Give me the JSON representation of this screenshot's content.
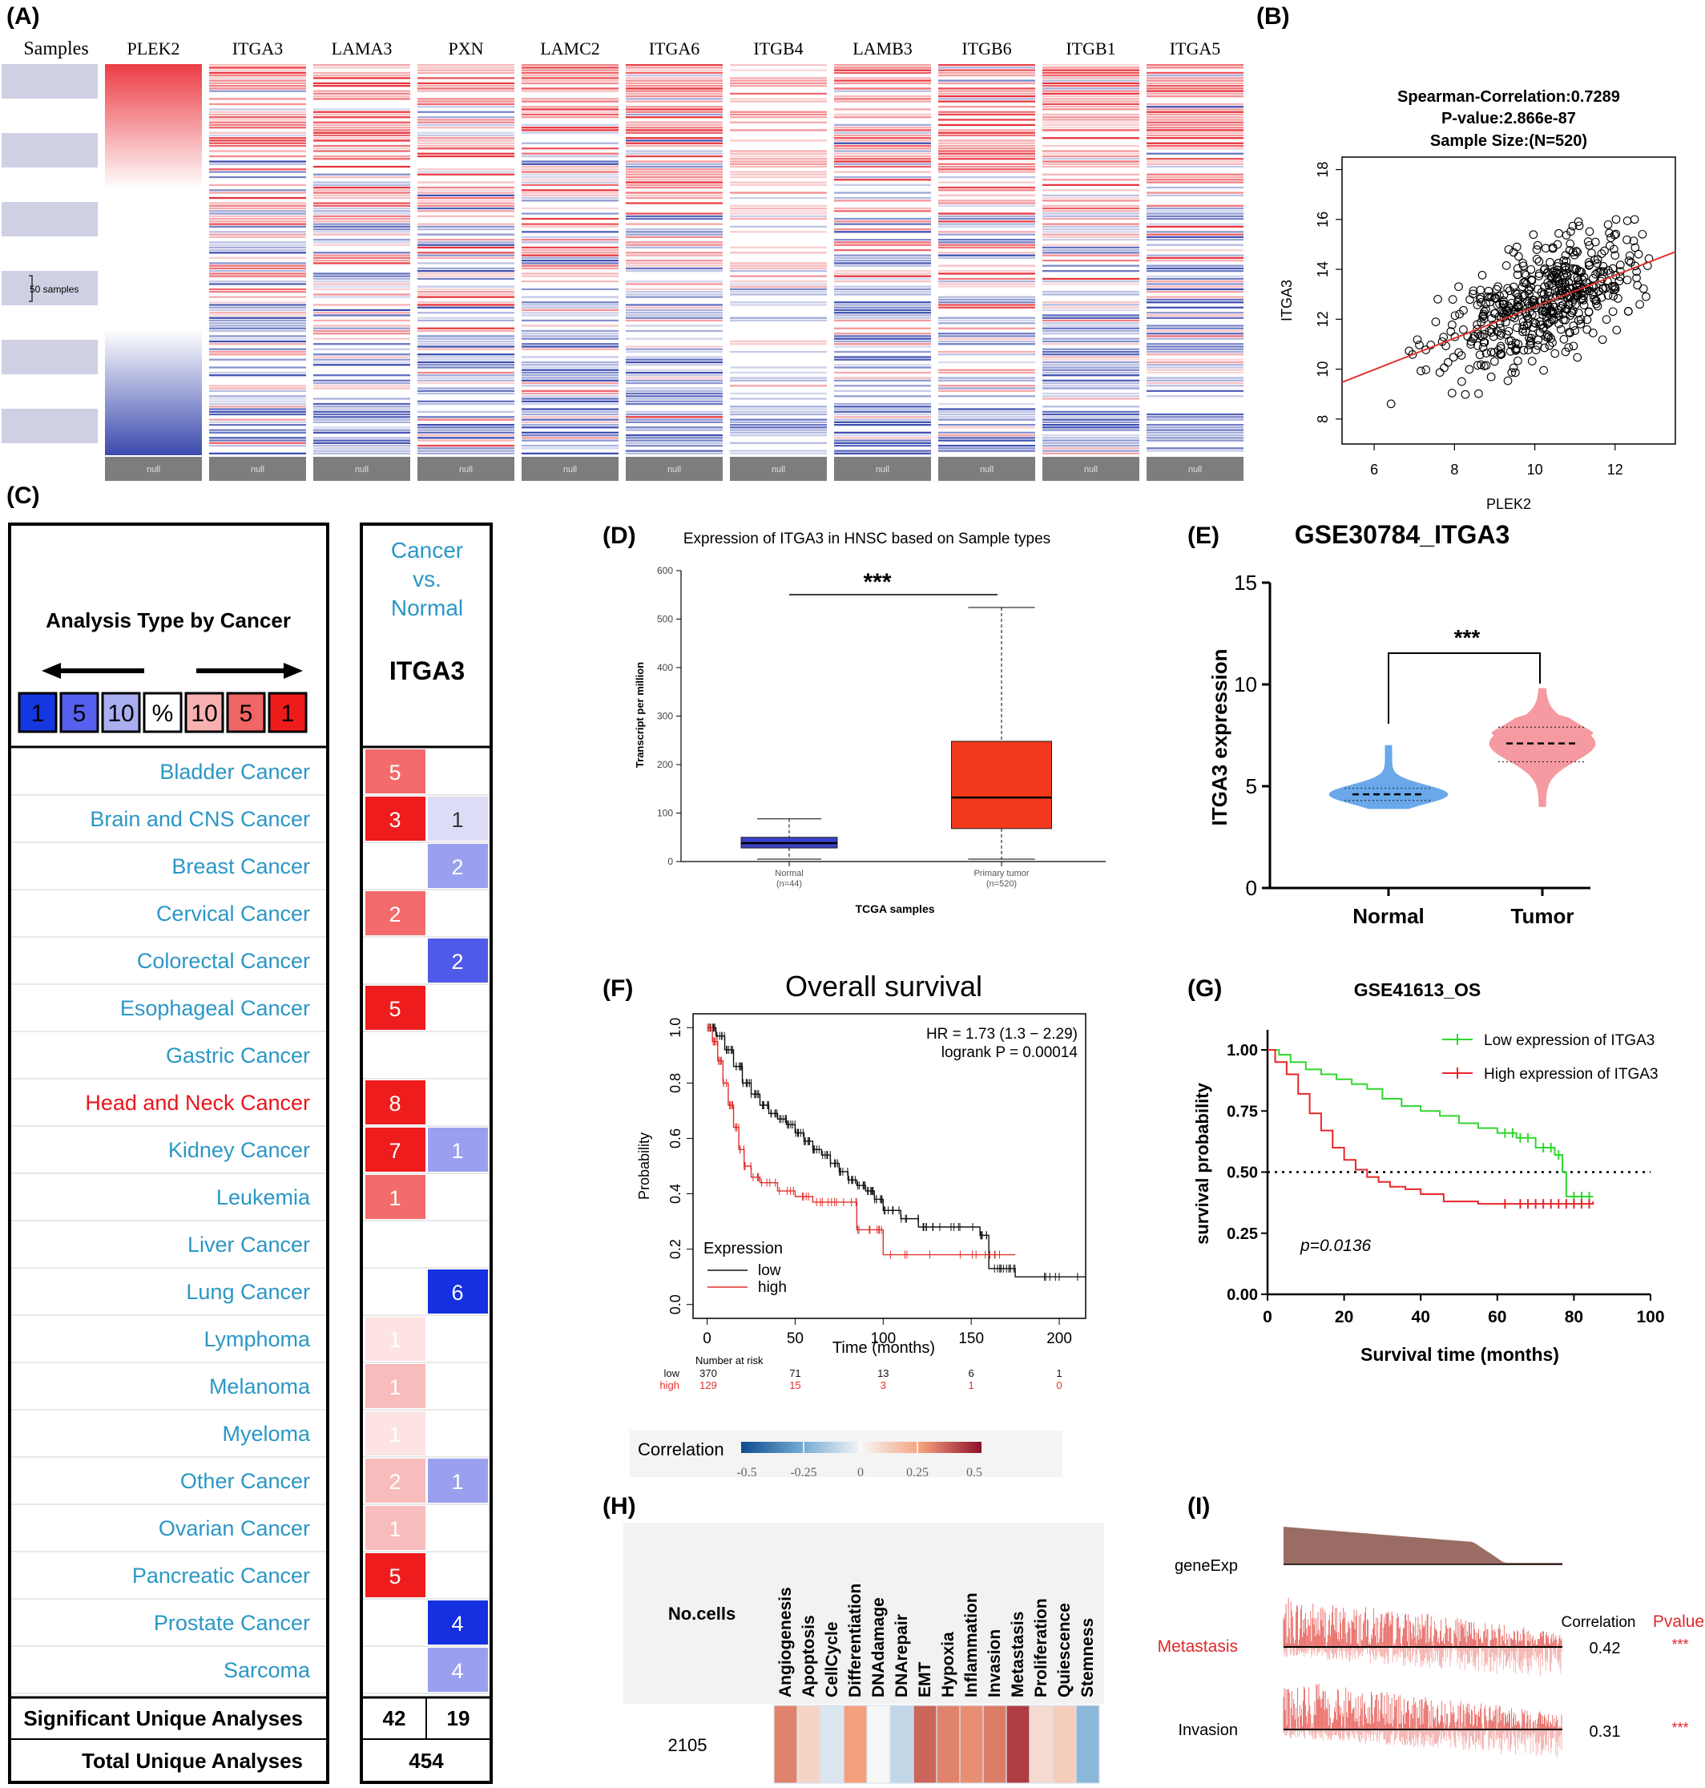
{
  "panels": {
    "A": {
      "label": "(A)"
    },
    "B": {
      "label": "(B)"
    },
    "C": {
      "label": "(C)"
    },
    "D": {
      "label": "(D)"
    },
    "E": {
      "label": "(E)"
    },
    "F": {
      "label": "(F)"
    },
    "G": {
      "label": "(G)"
    },
    "H": {
      "label": "(H)"
    },
    "I": {
      "label": "(I)"
    }
  },
  "chart_data": [
    {
      "panel": "A",
      "type": "heatmap",
      "sample_header": "Samples",
      "sample_scale_label": "50 samples",
      "columns": [
        "PLEK2",
        "ITGA3",
        "LAMA3",
        "PXN",
        "LAMC2",
        "ITGA6",
        "ITGB4",
        "LAMB3",
        "ITGB6",
        "ITGB1",
        "ITGA5"
      ],
      "footer_label": "null",
      "colors": {
        "high": "#e8343c",
        "low": "#3f4fb0",
        "mid": "#ffffff",
        "band": "#cfd0e4",
        "footer": "#7d7d7d"
      }
    },
    {
      "panel": "B",
      "type": "scatter",
      "title_lines": [
        "Spearman-Correlation:0.7289",
        "P-value:2.866e-87",
        "Sample Size:(N=520)"
      ],
      "xlabel": "PLEK2",
      "ylabel": "ITGA3",
      "xlim": [
        5.2,
        13.5
      ],
      "ylim": [
        7,
        18.5
      ],
      "xticks": [
        "6",
        "8",
        "10",
        "12"
      ],
      "yticks": [
        "8",
        "10",
        "12",
        "14",
        "16",
        "18"
      ],
      "n": 520,
      "fit": {
        "intercept": 6.2,
        "slope": 0.63
      },
      "fit_color": "#e0342f"
    },
    {
      "panel": "C",
      "type": "table",
      "legend_title": "Analysis Type by Cancer",
      "legend_cells": [
        "1",
        "5",
        "10",
        "%",
        "10",
        "5",
        "1"
      ],
      "legend_colors": [
        "#1437e0",
        "#5560ee",
        "#a9aef0",
        "#ffffff",
        "#f7b1b1",
        "#f06565",
        "#ee1b1b"
      ],
      "column_header": "Cancer vs. Normal",
      "gene": "ITGA3",
      "rows": [
        {
          "name": "Bladder Cancer",
          "up": "5",
          "down": "",
          "highlight": false
        },
        {
          "name": "Brain and CNS Cancer",
          "up": "3",
          "down": "1",
          "highlight": false
        },
        {
          "name": "Breast Cancer",
          "up": "",
          "down": "2",
          "highlight": false
        },
        {
          "name": "Cervical Cancer",
          "up": "2",
          "down": "",
          "highlight": false
        },
        {
          "name": "Colorectal Cancer",
          "up": "",
          "down": "2",
          "highlight": false
        },
        {
          "name": "Esophageal Cancer",
          "up": "5",
          "down": "",
          "highlight": false
        },
        {
          "name": "Gastric Cancer",
          "up": "",
          "down": "",
          "highlight": false
        },
        {
          "name": "Head and Neck Cancer",
          "up": "8",
          "down": "",
          "highlight": true
        },
        {
          "name": "Kidney Cancer",
          "up": "7",
          "down": "1",
          "highlight": false
        },
        {
          "name": "Leukemia",
          "up": "1",
          "down": "",
          "highlight": false
        },
        {
          "name": "Liver Cancer",
          "up": "",
          "down": "",
          "highlight": false
        },
        {
          "name": "Lung Cancer",
          "up": "",
          "down": "6",
          "highlight": false
        },
        {
          "name": "Lymphoma",
          "up": "1",
          "down": "",
          "highlight": false
        },
        {
          "name": "Melanoma",
          "up": "1",
          "down": "",
          "highlight": false
        },
        {
          "name": "Myeloma",
          "up": "1",
          "down": "",
          "highlight": false
        },
        {
          "name": "Other Cancer",
          "up": "2",
          "down": "1",
          "highlight": false
        },
        {
          "name": "Ovarian Cancer",
          "up": "1",
          "down": "",
          "highlight": false
        },
        {
          "name": "Pancreatic Cancer",
          "up": "5",
          "down": "",
          "highlight": false
        },
        {
          "name": "Prostate Cancer",
          "up": "",
          "down": "4",
          "highlight": false
        },
        {
          "name": "Sarcoma",
          "up": "",
          "down": "4",
          "highlight": false
        }
      ],
      "up_colors": [
        "#f36b6b",
        "#ee1c1c",
        "",
        "#f36b6b",
        "",
        "#ee1c1c",
        "",
        "#ee1c1c",
        "#ee1c1c",
        "#f36b6b",
        "",
        "",
        "#fde3e3",
        "#f9bcbc",
        "#fde3e3",
        "#f9bcbc",
        "#f9bcbc",
        "#ee1c1c",
        "",
        ""
      ],
      "down_colors": [
        "",
        "#dcdcf6",
        "#9aa0ee",
        "",
        "#4f5ae8",
        "",
        "",
        "",
        "#9aa0ee",
        "",
        "",
        "#1430e0",
        "",
        "",
        "",
        "#9aa0ee",
        "",
        "",
        "#1430e0",
        "#9aa0ee"
      ],
      "significant_label": "Significant Unique Analyses",
      "significant_up": "42",
      "significant_down": "19",
      "total_label": "Total Unique Analyses",
      "total": "454",
      "label_color": "#2a97c6",
      "highlight_color": "#e8161b"
    },
    {
      "panel": "D",
      "type": "box",
      "title": "Expression of ITGA3 in HNSC based on Sample types",
      "ylabel": "Transcript per million",
      "xlabel": "TCGA samples",
      "ylim": [
        0,
        600
      ],
      "yticks": [
        "0",
        "100",
        "200",
        "300",
        "400",
        "500",
        "600"
      ],
      "categories": [
        "Normal",
        "Primary tumor"
      ],
      "counts": [
        "(n=44)",
        "(n=520)"
      ],
      "boxes": [
        {
          "min": 5,
          "q1": 28,
          "median": 38,
          "q3": 50,
          "max": 88,
          "color": "#3b40c9"
        },
        {
          "min": 5,
          "q1": 68,
          "median": 132,
          "q3": 248,
          "max": 524,
          "color": "#f2391c"
        }
      ],
      "significance": "***"
    },
    {
      "panel": "E",
      "type": "violin",
      "title": "GSE30784_ITGA3",
      "ylabel": "ITGA3 expression",
      "ylim": [
        0,
        15
      ],
      "yticks": [
        "0",
        "5",
        "10",
        "15"
      ],
      "categories": [
        "Normal",
        "Tumor"
      ],
      "medians": [
        4.6,
        7.1
      ],
      "quartiles": [
        [
          4.3,
          4.9
        ],
        [
          6.2,
          7.9
        ]
      ],
      "ranges": [
        [
          3.9,
          7.0
        ],
        [
          4.0,
          9.8
        ]
      ],
      "colors": [
        "#6aa8ea",
        "#f59aa0"
      ],
      "significance": "***"
    },
    {
      "panel": "F",
      "type": "line",
      "title": "Overall survival",
      "xlabel": "Time (months)",
      "ylabel": "Probability",
      "xlim": [
        -8,
        215
      ],
      "ylim": [
        -0.05,
        1.05
      ],
      "xticks": [
        "0",
        "50",
        "100",
        "150",
        "200"
      ],
      "yticks": [
        "0.0",
        "0.2",
        "0.4",
        "0.6",
        "0.8",
        "1.0"
      ],
      "hr_text": "HR = 1.73 (1.3 − 2.29)",
      "logrank_text": "logrank P = 0.00014",
      "legend_title": "Expression",
      "series": [
        {
          "name": "low",
          "color": "#111111",
          "x": [
            0,
            5,
            10,
            15,
            20,
            25,
            30,
            35,
            40,
            45,
            50,
            55,
            60,
            65,
            70,
            75,
            80,
            85,
            90,
            95,
            100,
            110,
            120,
            130,
            155,
            160,
            170,
            175,
            215
          ],
          "y": [
            1.0,
            0.97,
            0.92,
            0.86,
            0.8,
            0.76,
            0.72,
            0.69,
            0.67,
            0.65,
            0.62,
            0.59,
            0.56,
            0.54,
            0.51,
            0.48,
            0.45,
            0.43,
            0.41,
            0.38,
            0.34,
            0.31,
            0.28,
            0.28,
            0.25,
            0.13,
            0.13,
            0.1,
            0.1
          ]
        },
        {
          "name": "high",
          "color": "#e3302c",
          "x": [
            0,
            3,
            6,
            9,
            12,
            15,
            18,
            21,
            25,
            30,
            40,
            50,
            60,
            70,
            80,
            85,
            95,
            100,
            140,
            160,
            175
          ],
          "y": [
            1.0,
            0.95,
            0.88,
            0.8,
            0.72,
            0.64,
            0.56,
            0.5,
            0.46,
            0.44,
            0.41,
            0.39,
            0.37,
            0.37,
            0.37,
            0.27,
            0.27,
            0.18,
            0.18,
            0.18,
            0.18
          ]
        }
      ],
      "risk_title": "Number at risk",
      "risk_times": [
        0,
        50,
        100,
        150,
        200
      ],
      "risk": [
        {
          "name": "low",
          "values": [
            "370",
            "71",
            "13",
            "6",
            "1"
          ],
          "color": "#111111"
        },
        {
          "name": "high",
          "values": [
            "129",
            "15",
            "3",
            "1",
            "0"
          ],
          "color": "#e3302c"
        }
      ]
    },
    {
      "panel": "G",
      "type": "line",
      "title": "GSE41613_OS",
      "xlabel": "Survival time (months)",
      "ylabel": "survival probability",
      "xlim": [
        0,
        100
      ],
      "ylim": [
        0,
        1.05
      ],
      "xticks": [
        "0",
        "20",
        "40",
        "60",
        "80",
        "100"
      ],
      "yticks": [
        "0.00",
        "0.25",
        "0.50",
        "0.75",
        "1.00"
      ],
      "pvalue_text": "p=0.0136",
      "series": [
        {
          "name": "Low expression of ITGA3",
          "color": "#2fd72f",
          "x": [
            0,
            3,
            6,
            10,
            14,
            18,
            22,
            26,
            30,
            35,
            40,
            45,
            50,
            55,
            60,
            65,
            70,
            75,
            77,
            78,
            85
          ],
          "y": [
            1.0,
            0.98,
            0.95,
            0.92,
            0.9,
            0.88,
            0.86,
            0.84,
            0.8,
            0.77,
            0.75,
            0.73,
            0.7,
            0.68,
            0.66,
            0.64,
            0.6,
            0.57,
            0.5,
            0.4,
            0.4
          ]
        },
        {
          "name": "High expression of ITGA3",
          "color": "#e8262a",
          "x": [
            0,
            2,
            5,
            8,
            11,
            14,
            17,
            20,
            23,
            26,
            29,
            32,
            36,
            40,
            46,
            55,
            65,
            75,
            85
          ],
          "y": [
            1.0,
            0.95,
            0.9,
            0.82,
            0.74,
            0.67,
            0.6,
            0.55,
            0.51,
            0.48,
            0.46,
            0.44,
            0.43,
            0.41,
            0.38,
            0.37,
            0.37,
            0.37,
            0.38
          ]
        }
      ],
      "reference_line": 0.5
    },
    {
      "panel": "H",
      "type": "heatmap",
      "colorbar_label": "Correlation",
      "colorbar_ticks": [
        "-0.5",
        "-0.25",
        "0",
        "0.25",
        "0.5"
      ],
      "colorbar_range": [
        -0.5,
        0.5
      ],
      "row_header": "No.cells",
      "row_value": "2105",
      "categories": [
        "Angiogenesis",
        "Apoptosis",
        "CellCycle",
        "Differentiation",
        "DNAdamage",
        "DNArepair",
        "EMT",
        "Hypoxia",
        "Inflammation",
        "Invasion",
        "Metastasis",
        "Proliferation",
        "Quiescence",
        "Stemness"
      ],
      "values": [
        0.3,
        0.1,
        -0.05,
        0.25,
        0.0,
        -0.1,
        0.35,
        0.3,
        0.28,
        0.31,
        0.42,
        0.08,
        0.12,
        -0.2
      ]
    },
    {
      "panel": "I",
      "type": "area",
      "track_labels": [
        "geneExp",
        "Metastasis",
        "Invasion"
      ],
      "track_colors": [
        "#9a6c63",
        "#e55650",
        "#e55650"
      ],
      "correlation_header": "Correlation",
      "pvalue_header": "Pvalue",
      "rows": [
        {
          "name": "Metastasis",
          "correlation": "0.42",
          "pvalue": "***",
          "highlight": true
        },
        {
          "name": "Invasion",
          "correlation": "0.31",
          "pvalue": "***",
          "highlight": false
        }
      ],
      "highlight_color": "#e2262b"
    }
  ]
}
